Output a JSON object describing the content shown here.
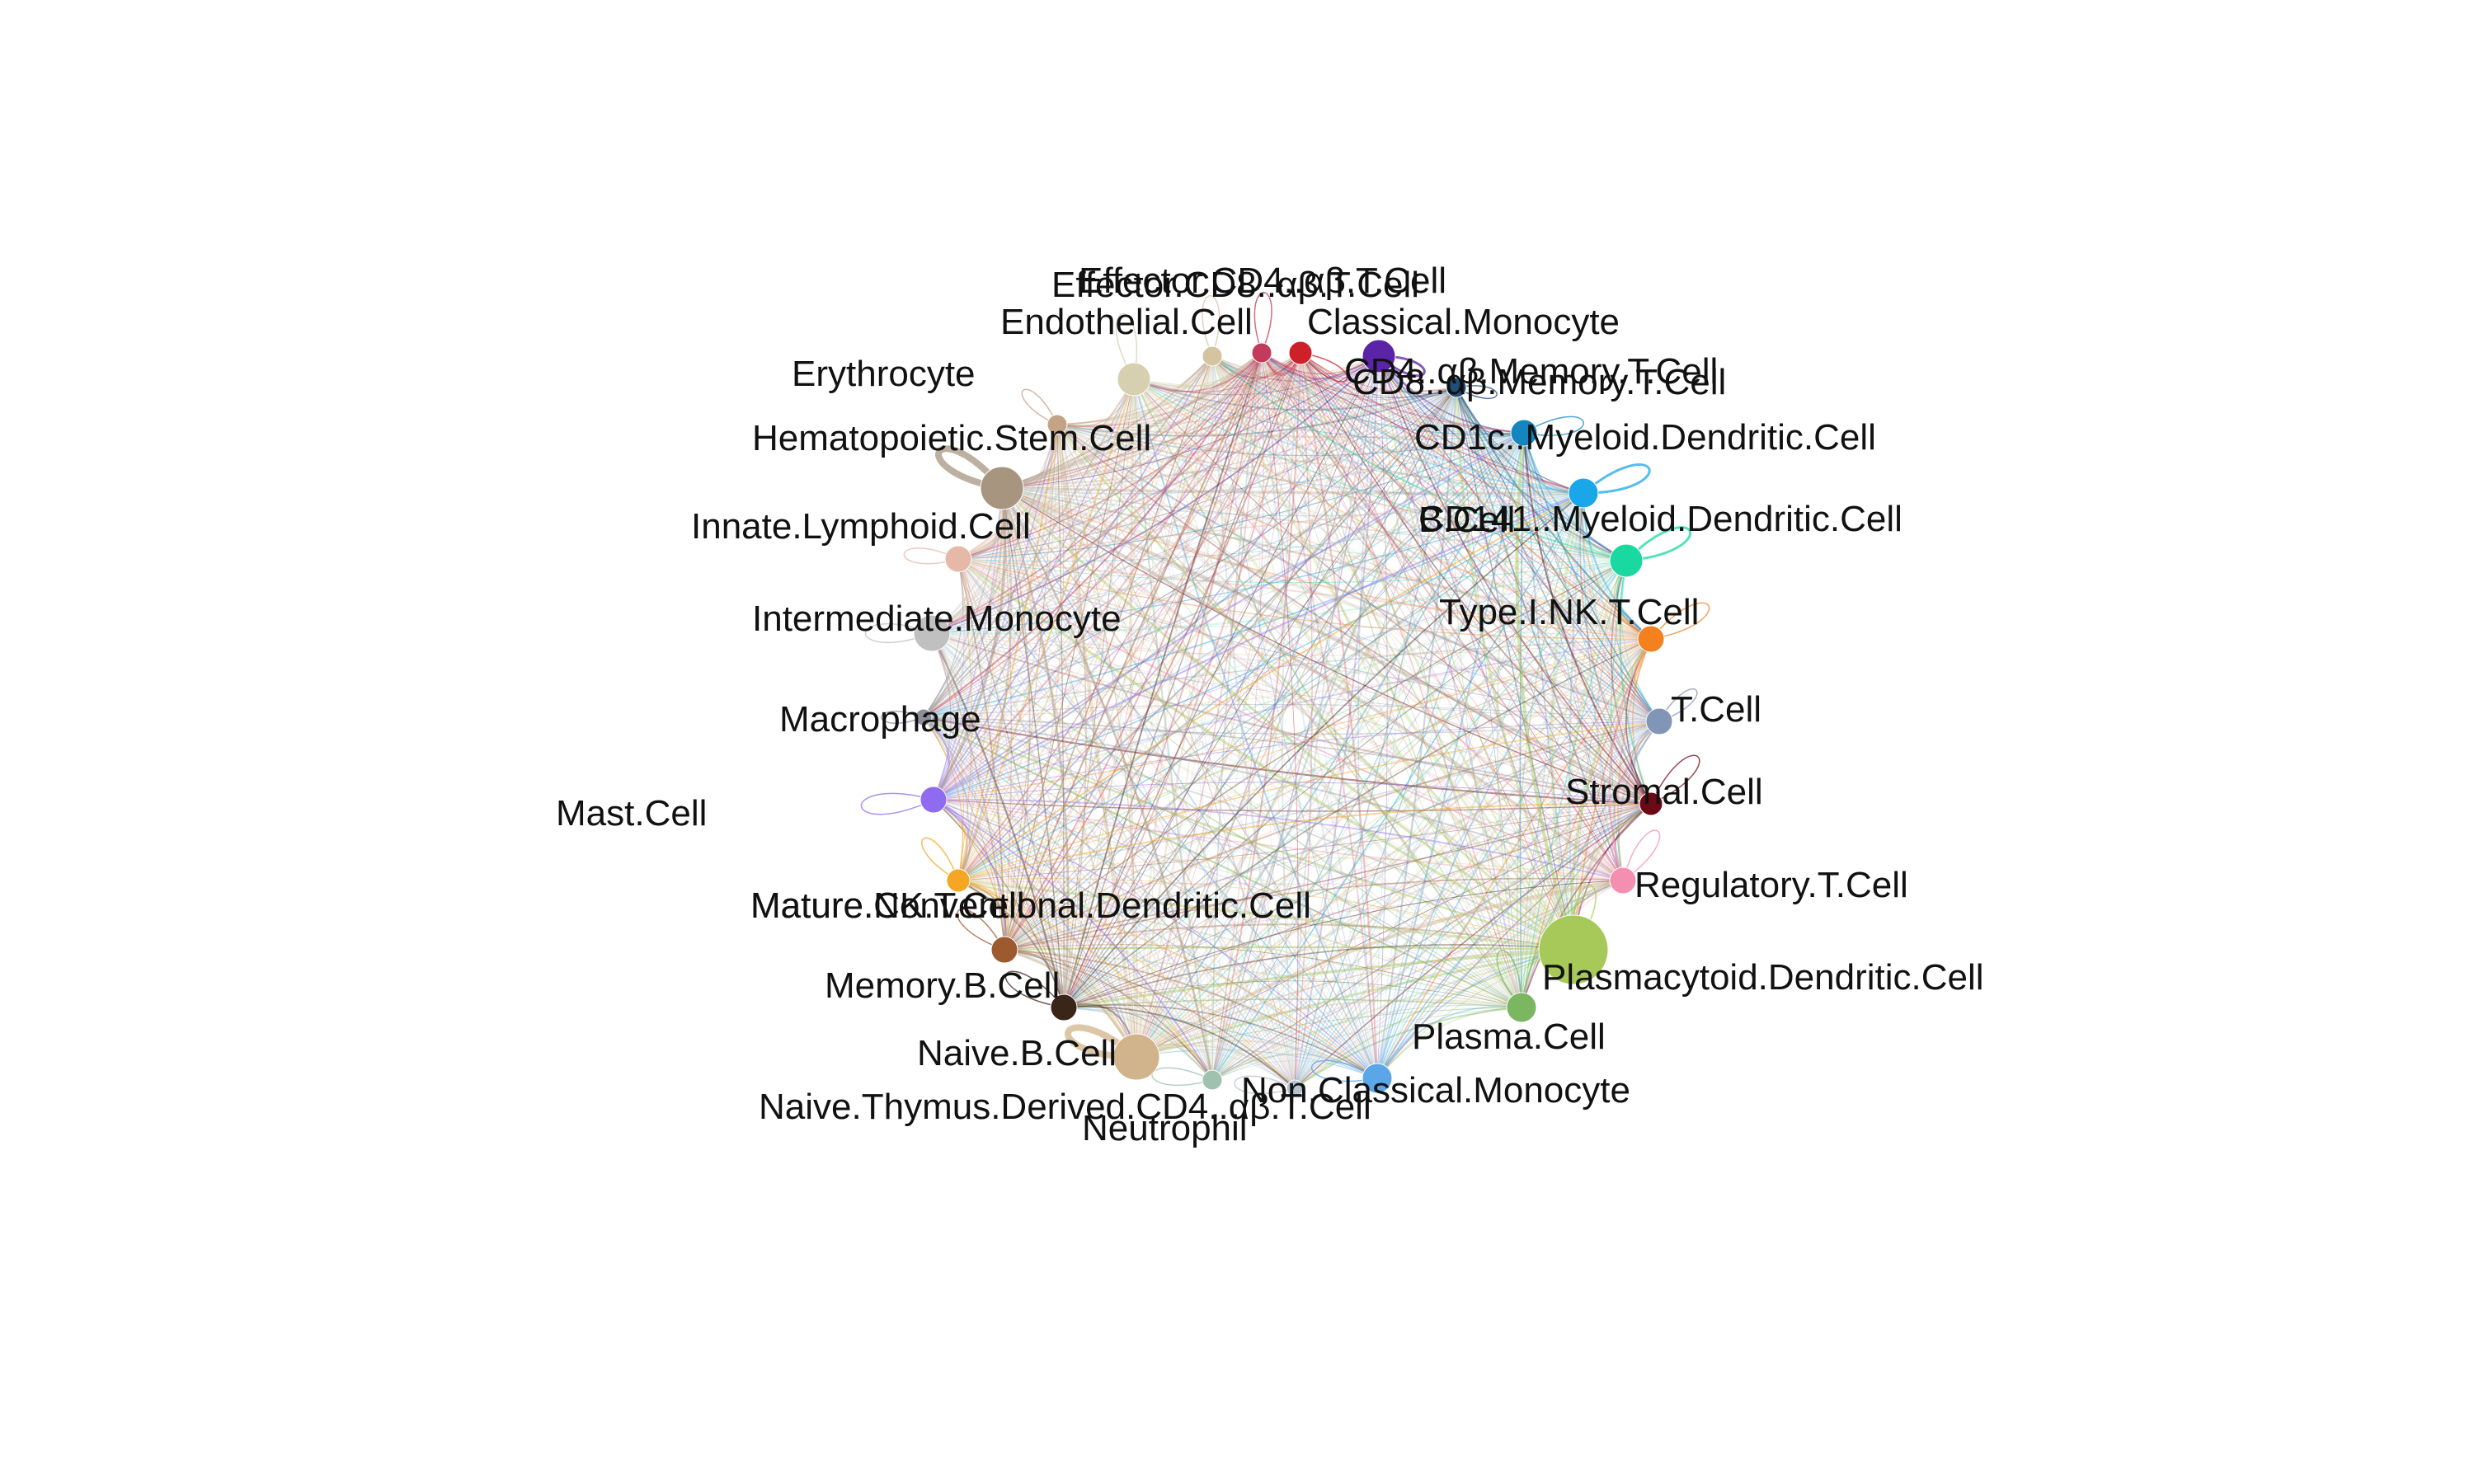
{
  "chart_data": {
    "type": "network",
    "layout": "circle",
    "edges_all_pairs": true,
    "self_loops": true,
    "nodes": [
      {
        "label": "Classical.Monocyte",
        "color": "#CE2029"
      },
      {
        "label": "CD8..αβ.Memory.T.Cell",
        "color": "#5B23A6"
      },
      {
        "label": "CD4..αβ.Memory.T.Cell",
        "color": "#1F4E79"
      },
      {
        "label": "CD1c..Myeloid.Dendritic.Cell",
        "color": "#1386C0"
      },
      {
        "label": "CD141..Myeloid.Dendritic.Cell",
        "color": "#19A7EA"
      },
      {
        "label": "B.Cell",
        "color": "#19D9A1"
      },
      {
        "label": "Type.I.NK.T.Cell",
        "color": "#F5801F"
      },
      {
        "label": "T.Cell",
        "color": "#8196B6"
      },
      {
        "label": "Stromal.Cell",
        "color": "#6B0A14"
      },
      {
        "label": "Regulatory.T.Cell",
        "color": "#F48FB1"
      },
      {
        "label": "Plasmacytoid.Dendritic.Cell",
        "color": "#A6C95A"
      },
      {
        "label": "Plasma.Cell",
        "color": "#7BB661"
      },
      {
        "label": "Non.Classical.Monocyte",
        "color": "#5AA6E8"
      },
      {
        "label": "Neutrophil",
        "color": "#B5C3D1"
      },
      {
        "label": "Naive.Thymus.Derived.CD4..αβ.T.Cell",
        "color": "#9FC2B0"
      },
      {
        "label": "Naive.B.Cell",
        "color": "#D2B48C"
      },
      {
        "label": "Memory.B.Cell",
        "color": "#3B2418"
      },
      {
        "label": "Mature.NK.T.Cell",
        "color": "#9C5A2E"
      },
      {
        "label": "Mature.Conventional.Dendritic.Cell",
        "color": "#F5A623"
      },
      {
        "label": "Mast.Cell",
        "color": "#8F6BF0"
      },
      {
        "label": "Macrophage",
        "color": "#8A8F9A"
      },
      {
        "label": "Intermediate.Monocyte",
        "color": "#C0C0C0"
      },
      {
        "label": "Innate.Lymphoid.Cell",
        "color": "#E6B8A8"
      },
      {
        "label": "Hematopoietic.Stem.Cell",
        "color": "#A89580"
      },
      {
        "label": "Erythrocyte",
        "color": "#C4A484"
      },
      {
        "label": "Endothelial.Cell",
        "color": "#D6CFB0"
      },
      {
        "label": "Effector.CD8..αβ.T.Cell",
        "color": "#D4C4A0"
      },
      {
        "label": "Effector.CD4..αβ.T.Cell",
        "color": "#C23B5A"
      }
    ]
  }
}
